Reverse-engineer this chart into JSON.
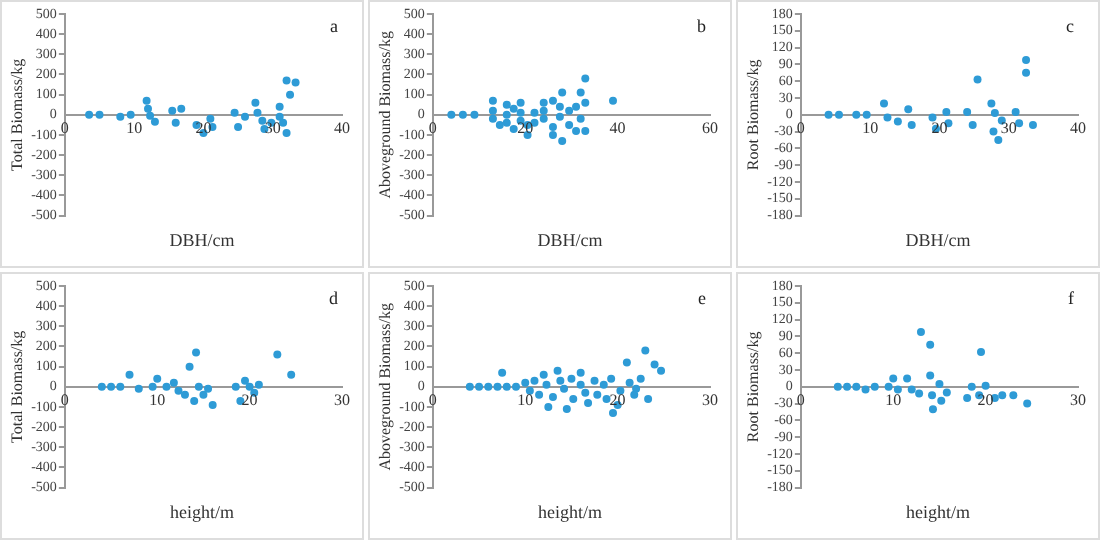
{
  "chart_data": [
    {
      "type": "scatter",
      "xlabel": "DBH/cm",
      "ylabel": "Total Biomass/kg",
      "annotations": [
        "a"
      ],
      "marker": "circle",
      "grid": false,
      "legend": false,
      "xlim": [
        0,
        40
      ],
      "xticks": [
        0,
        10,
        20,
        30,
        40
      ],
      "ylim": [
        -500,
        500
      ],
      "yticks": [
        -500,
        -400,
        -300,
        -200,
        -100,
        0,
        100,
        200,
        300,
        400,
        500
      ],
      "series": [
        {
          "color": "#2e9bd6",
          "x": [
            3.5,
            5,
            8,
            9.5,
            11.8,
            12,
            12.3,
            13,
            15.5,
            16.8,
            16,
            19,
            20,
            21,
            21.3,
            24.5,
            25,
            26,
            27.5,
            27.8,
            28.5,
            28.8,
            29.8,
            31,
            31,
            31.5,
            32,
            32,
            33.3,
            32.5
          ],
          "values": [
            0,
            0,
            -10,
            0,
            70,
            30,
            -5,
            -35,
            20,
            30,
            -40,
            -50,
            -90,
            -20,
            -60,
            10,
            -60,
            -10,
            60,
            10,
            -30,
            -70,
            -40,
            40,
            -10,
            -40,
            -90,
            170,
            160,
            100
          ]
        }
      ]
    },
    {
      "type": "scatter",
      "xlabel": "DBH/cm",
      "ylabel": "Aboveground Biomass/kg",
      "annotations": [
        "b"
      ],
      "marker": "circle",
      "grid": false,
      "legend": false,
      "xlim": [
        0,
        60
      ],
      "xticks": [
        0,
        20,
        40,
        60
      ],
      "ylim": [
        -500,
        500
      ],
      "yticks": [
        -500,
        -400,
        -300,
        -200,
        -100,
        0,
        100,
        200,
        300,
        400,
        500
      ],
      "series": [
        {
          "color": "#2e9bd6",
          "x": [
            4,
            6.5,
            9,
            13,
            13,
            13,
            14.5,
            16,
            16,
            16,
            17.5,
            17.5,
            19,
            19,
            19,
            20.5,
            20.5,
            22,
            22,
            24,
            24,
            24,
            26,
            26,
            26,
            27.5,
            27.5,
            28,
            28,
            29.5,
            29.5,
            31,
            31,
            32,
            32,
            33,
            33,
            33,
            39
          ],
          "values": [
            0,
            0,
            0,
            70,
            20,
            -20,
            -50,
            50,
            0,
            -40,
            30,
            -70,
            60,
            10,
            -30,
            -50,
            -100,
            10,
            -40,
            60,
            20,
            -20,
            70,
            -60,
            -100,
            40,
            -10,
            110,
            -130,
            20,
            -50,
            40,
            -80,
            110,
            -20,
            180,
            60,
            -80,
            70
          ]
        }
      ]
    },
    {
      "type": "scatter",
      "xlabel": "DBH/cm",
      "ylabel": "Root Biomass/kg",
      "annotations": [
        "c"
      ],
      "marker": "circle",
      "grid": false,
      "legend": false,
      "xlim": [
        0,
        40
      ],
      "xticks": [
        0,
        10,
        20,
        30,
        40
      ],
      "ylim": [
        -180,
        180
      ],
      "yticks": [
        -180,
        -150,
        -120,
        -90,
        -60,
        -30,
        0,
        30,
        60,
        90,
        120,
        150,
        180
      ],
      "series": [
        {
          "color": "#2e9bd6",
          "x": [
            4,
            5.5,
            8,
            9.5,
            12,
            12.5,
            14,
            15.5,
            16,
            19,
            19.5,
            21,
            21.3,
            24,
            24.8,
            25.5,
            27.5,
            27.8,
            28,
            28.5,
            29,
            31,
            31.5,
            32.5,
            32.5,
            33.5
          ],
          "values": [
            0,
            0,
            0,
            0,
            20,
            -5,
            -12,
            10,
            -18,
            -5,
            -25,
            5,
            -15,
            5,
            -18,
            63,
            20,
            -30,
            3,
            -45,
            -10,
            5,
            -15,
            98,
            75,
            -18
          ]
        }
      ]
    },
    {
      "type": "scatter",
      "xlabel": "height/m",
      "ylabel": "Total Biomass/kg",
      "annotations": [
        "d"
      ],
      "marker": "circle",
      "grid": false,
      "legend": false,
      "xlim": [
        0,
        30
      ],
      "xticks": [
        0,
        10,
        20,
        30
      ],
      "ylim": [
        -500,
        500
      ],
      "yticks": [
        -500,
        -400,
        -300,
        -200,
        -100,
        0,
        100,
        200,
        300,
        400,
        500
      ],
      "series": [
        {
          "color": "#2e9bd6",
          "x": [
            4,
            5,
            6,
            7,
            8,
            9.5,
            10,
            11,
            11.8,
            12.3,
            13,
            13.5,
            14,
            14.2,
            14.5,
            15,
            15.5,
            16,
            18.5,
            19,
            19.5,
            20,
            20.5,
            21,
            23,
            24.5
          ],
          "values": [
            0,
            0,
            0,
            60,
            -10,
            0,
            40,
            0,
            20,
            -20,
            -40,
            100,
            -70,
            170,
            0,
            -40,
            -10,
            -90,
            0,
            -70,
            30,
            0,
            -30,
            10,
            160,
            60
          ]
        }
      ]
    },
    {
      "type": "scatter",
      "xlabel": "height/m",
      "ylabel": "Aboveground Biomass/kg",
      "annotations": [
        "e"
      ],
      "marker": "circle",
      "grid": false,
      "legend": false,
      "xlim": [
        0,
        30
      ],
      "xticks": [
        0,
        10,
        20,
        30
      ],
      "ylim": [
        -500,
        500
      ],
      "yticks": [
        -500,
        -400,
        -300,
        -200,
        -100,
        0,
        100,
        200,
        300,
        400,
        500
      ],
      "series": [
        {
          "color": "#2e9bd6",
          "x": [
            4,
            5,
            6,
            7,
            8,
            9,
            7.5,
            10,
            10.5,
            11,
            11.5,
            12,
            12.3,
            12.5,
            13,
            13.5,
            13.8,
            14.2,
            14.5,
            15,
            15.2,
            16,
            16,
            16.5,
            16.8,
            17.5,
            17.8,
            18.5,
            18.8,
            19.3,
            19.5,
            20,
            20.3,
            21,
            21.3,
            21.8,
            22,
            22.5,
            23,
            23.3,
            24,
            24.7
          ],
          "values": [
            0,
            0,
            0,
            0,
            0,
            0,
            70,
            20,
            -20,
            30,
            -40,
            60,
            10,
            -100,
            -50,
            80,
            30,
            -10,
            -110,
            40,
            -60,
            70,
            10,
            -30,
            -80,
            30,
            -40,
            10,
            -60,
            40,
            -130,
            -90,
            -20,
            120,
            20,
            -40,
            -10,
            40,
            180,
            -60,
            110,
            80
          ]
        }
      ]
    },
    {
      "type": "scatter",
      "xlabel": "height/m",
      "ylabel": "Root Biomass/kg",
      "annotations": [
        "f"
      ],
      "marker": "circle",
      "grid": false,
      "legend": false,
      "xlim": [
        0,
        30
      ],
      "xticks": [
        0,
        10,
        20,
        30
      ],
      "ylim": [
        -180,
        180
      ],
      "yticks": [
        -180,
        -150,
        -120,
        -90,
        -60,
        -30,
        0,
        30,
        60,
        90,
        120,
        150,
        180
      ],
      "series": [
        {
          "color": "#2e9bd6",
          "x": [
            4,
            5,
            6,
            7,
            8,
            9.5,
            10,
            10.5,
            11.5,
            12,
            12.8,
            13,
            14,
            14,
            14.2,
            14.3,
            15,
            15.2,
            15.8,
            18,
            18.5,
            19.3,
            19.5,
            20,
            21,
            21.8,
            23,
            24.5
          ],
          "values": [
            0,
            0,
            0,
            -5,
            0,
            0,
            15,
            -5,
            15,
            -5,
            -12,
            98,
            75,
            20,
            -15,
            -40,
            5,
            -25,
            -10,
            -20,
            0,
            -15,
            62,
            2,
            -20,
            -15,
            -15,
            -30
          ]
        }
      ]
    }
  ]
}
